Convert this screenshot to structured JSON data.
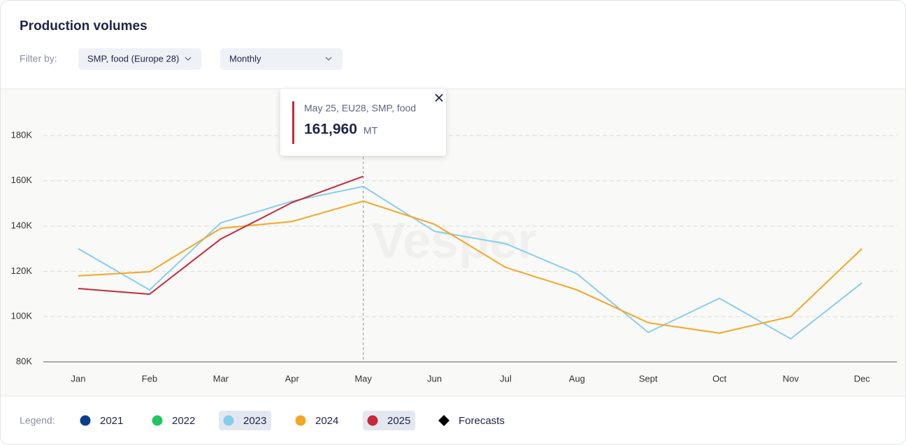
{
  "header": {
    "title": "Production volumes"
  },
  "filters": {
    "label": "Filter by:",
    "product": "SMP, food (Europe 28)",
    "period": "Monthly"
  },
  "chart_data": {
    "type": "line",
    "watermark": "Vesper",
    "categories": [
      "Jan",
      "Feb",
      "Mar",
      "Apr",
      "May",
      "Jun",
      "Jul",
      "Aug",
      "Sept",
      "Oct",
      "Nov",
      "Dec"
    ],
    "ylim": [
      80000,
      200000
    ],
    "yticks": [
      {
        "value": 80000,
        "label": "80K"
      },
      {
        "value": 100000,
        "label": "100K"
      },
      {
        "value": 120000,
        "label": "120K"
      },
      {
        "value": 140000,
        "label": "140K"
      },
      {
        "value": 160000,
        "label": "160K"
      },
      {
        "value": 180000,
        "label": "180K"
      }
    ],
    "grid": true,
    "series": [
      {
        "name": "2023",
        "color": "#87ceeb",
        "highlighted": true,
        "values": [
          130000,
          111800,
          141400,
          151000,
          157500,
          137700,
          132200,
          118900,
          93000,
          108100,
          90200,
          114900
        ]
      },
      {
        "name": "2024",
        "color": "#f5a623",
        "highlighted": false,
        "values": [
          118000,
          119800,
          139000,
          142000,
          151000,
          140800,
          121700,
          111800,
          97300,
          92700,
          100000,
          130000
        ]
      },
      {
        "name": "2025",
        "color": "#c8283a",
        "highlighted": true,
        "values": [
          112400,
          109900,
          134300,
          150400,
          161960,
          null,
          null,
          null,
          null,
          null,
          null,
          null
        ]
      }
    ],
    "tooltip": {
      "title": "May 25, EU28, SMP, food",
      "value_label": "161,960",
      "unit": "MT"
    },
    "legend": {
      "label": "Legend:",
      "inactive": [
        {
          "name": "2021",
          "color": "#0b3d91"
        },
        {
          "name": "2022",
          "color": "#22c55e"
        }
      ],
      "forecasts": "Forecasts"
    }
  }
}
